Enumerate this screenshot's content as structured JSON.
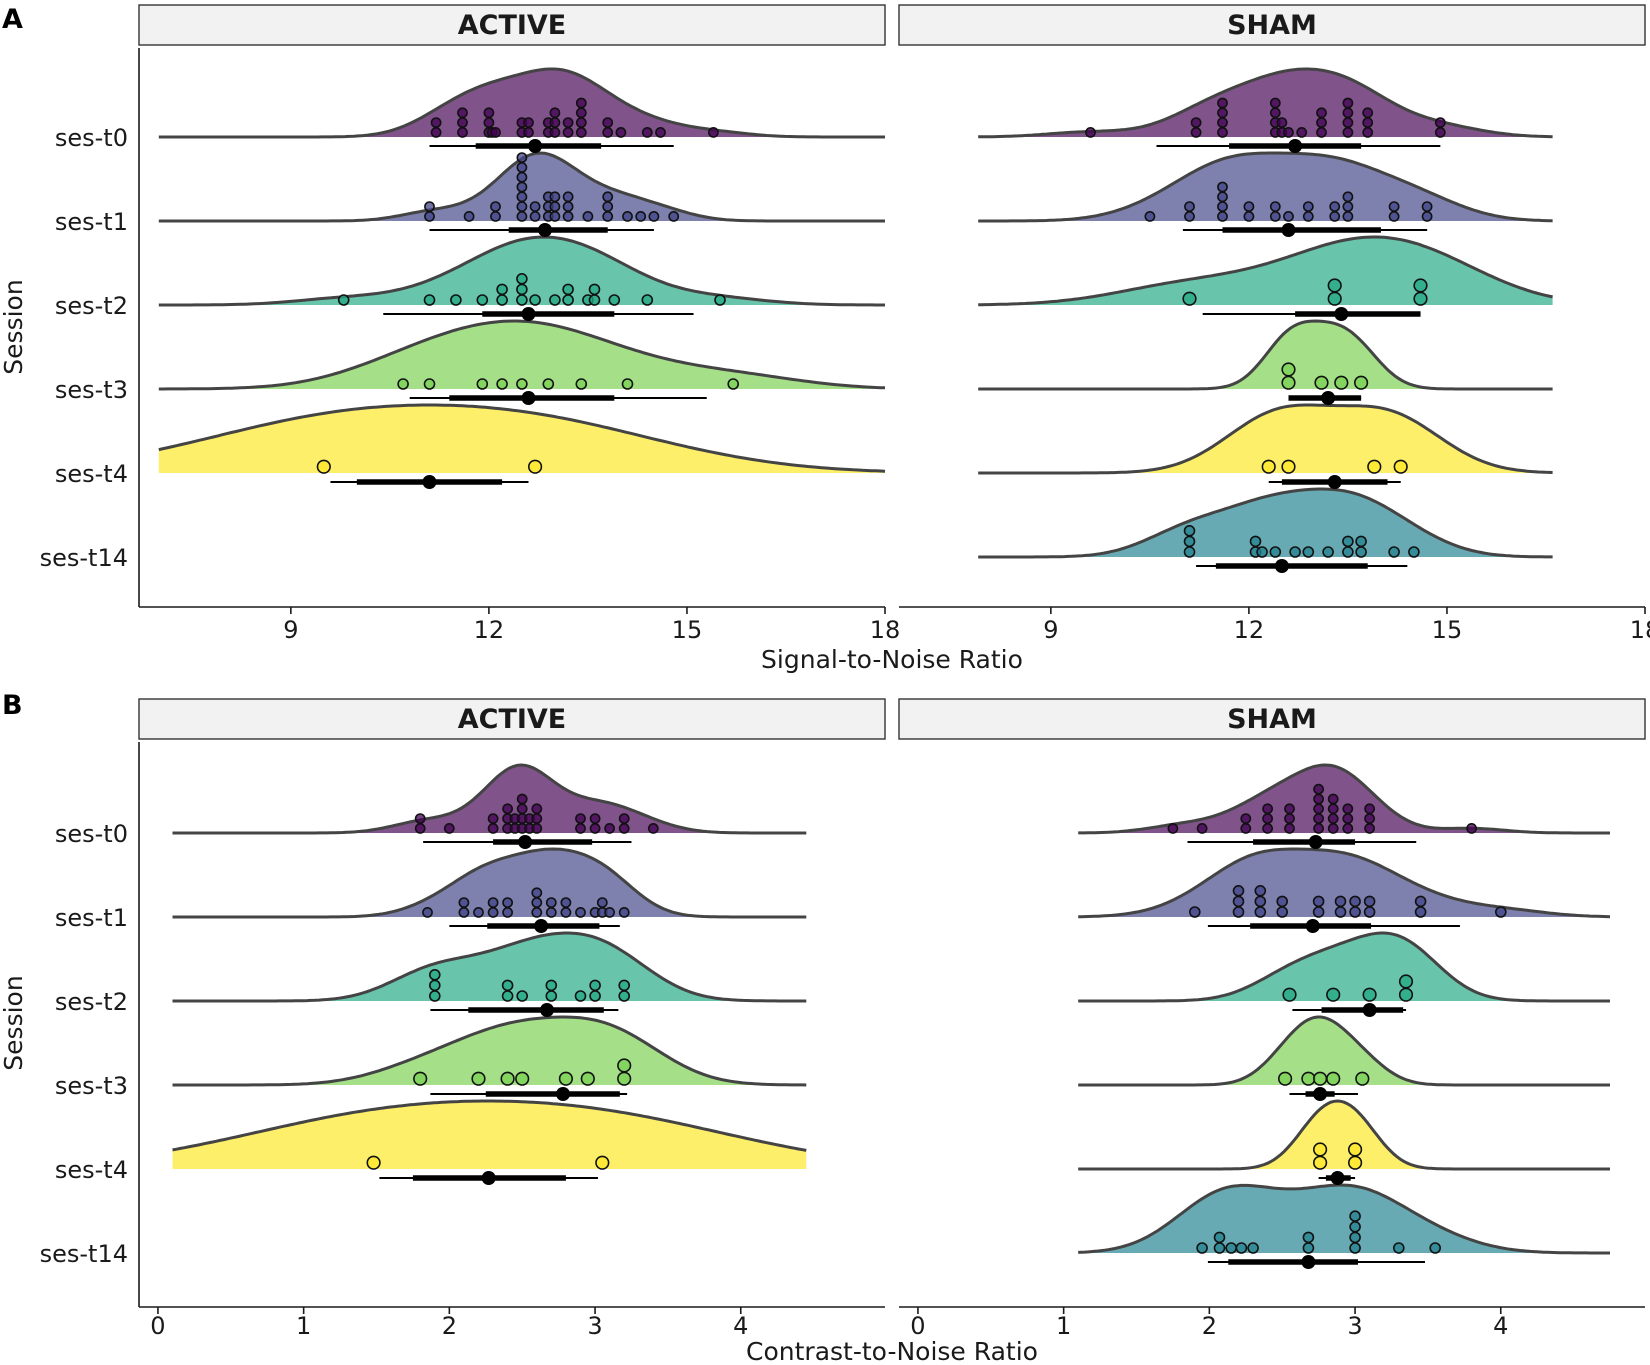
{
  "figure": {
    "panel_labels": [
      "A",
      "B"
    ],
    "sessions": [
      "ses-t0",
      "ses-t1",
      "ses-t2",
      "ses-t3",
      "ses-t4",
      "ses-t14"
    ],
    "colors": [
      "#440154",
      "#414487",
      "#22a884",
      "#7ad151",
      "#fde725",
      "#21818f"
    ]
  },
  "chart_data": [
    {
      "type": "raincloud",
      "panel": "A",
      "xlabel": "Signal-to-Noise Ratio",
      "ylabel": "Session",
      "xlim": [
        6.7,
        18.0
      ],
      "xticks": [
        9,
        12,
        15,
        18
      ],
      "xtick_labels": [
        "9",
        "12",
        "15",
        "18"
      ],
      "facets": [
        {
          "title": "ACTIVE",
          "groups": [
            {
              "session": "ses-t0",
              "range": [
                7.0,
                18.0
              ],
              "points": [
                11.2,
                11.2,
                11.6,
                11.6,
                11.6,
                12.0,
                12.0,
                12.0,
                12.05,
                12.1,
                12.5,
                12.5,
                12.6,
                12.6,
                12.9,
                12.9,
                13.0,
                13.0,
                13.0,
                13.2,
                13.2,
                13.4,
                13.4,
                13.4,
                13.4,
                13.8,
                13.8,
                14.0,
                14.4,
                14.6,
                15.4
              ],
              "summary": {
                "median": 12.7,
                "q_inner": [
                  11.8,
                  13.7
                ],
                "q_outer": [
                  11.1,
                  14.8
                ]
              }
            },
            {
              "session": "ses-t1",
              "range": [
                7.0,
                18.0
              ],
              "points": [
                11.1,
                11.1,
                11.7,
                12.1,
                12.1,
                12.5,
                12.5,
                12.5,
                12.5,
                12.5,
                12.5,
                12.5,
                12.7,
                12.7,
                12.9,
                12.9,
                12.9,
                13.0,
                13.0,
                13.0,
                13.2,
                13.2,
                13.2,
                13.5,
                13.8,
                13.8,
                13.8,
                14.1,
                14.3,
                14.5,
                14.8
              ],
              "summary": {
                "median": 12.85,
                "q_inner": [
                  12.3,
                  13.8
                ],
                "q_outer": [
                  11.1,
                  14.5
                ]
              }
            },
            {
              "session": "ses-t2",
              "range": [
                7.0,
                18.0
              ],
              "points": [
                9.8,
                11.1,
                11.5,
                11.9,
                12.2,
                12.2,
                12.5,
                12.5,
                12.5,
                12.7,
                13.0,
                13.2,
                13.2,
                13.5,
                13.6,
                13.6,
                13.9,
                14.4,
                15.5
              ],
              "summary": {
                "median": 12.6,
                "q_inner": [
                  11.9,
                  13.9
                ],
                "q_outer": [
                  10.4,
                  15.1
                ]
              }
            },
            {
              "session": "ses-t3",
              "range": [
                7.0,
                18.0
              ],
              "points": [
                10.7,
                11.1,
                11.9,
                12.2,
                12.5,
                12.9,
                13.4,
                14.1,
                15.7
              ],
              "summary": {
                "median": 12.6,
                "q_inner": [
                  11.4,
                  13.9
                ],
                "q_outer": [
                  10.8,
                  15.3
                ]
              }
            },
            {
              "session": "ses-t4",
              "range": [
                7.0,
                18.0
              ],
              "points": [
                9.5,
                12.7
              ],
              "summary": {
                "median": 11.1,
                "q_inner": [
                  10.0,
                  12.2
                ],
                "q_outer": [
                  9.6,
                  12.6
                ]
              }
            }
          ]
        },
        {
          "title": "SHAM",
          "groups": [
            {
              "session": "ses-t0",
              "range": [
                7.9,
                16.6
              ],
              "points": [
                9.6,
                11.2,
                11.2,
                11.6,
                11.6,
                11.6,
                11.6,
                12.4,
                12.4,
                12.4,
                12.4,
                12.5,
                12.5,
                12.6,
                12.8,
                13.1,
                13.1,
                13.1,
                13.5,
                13.5,
                13.5,
                13.5,
                13.8,
                13.8,
                13.8,
                14.9,
                14.9
              ],
              "summary": {
                "median": 12.7,
                "q_inner": [
                  11.7,
                  13.7
                ],
                "q_outer": [
                  10.6,
                  14.9
                ]
              }
            },
            {
              "session": "ses-t1",
              "range": [
                7.9,
                16.6
              ],
              "points": [
                10.5,
                11.1,
                11.1,
                11.6,
                11.6,
                11.6,
                11.6,
                12.0,
                12.0,
                12.4,
                12.4,
                12.6,
                12.9,
                12.9,
                13.3,
                13.3,
                13.5,
                13.5,
                13.5,
                14.2,
                14.2,
                14.7,
                14.7
              ],
              "summary": {
                "median": 12.6,
                "q_inner": [
                  11.6,
                  14.0
                ],
                "q_outer": [
                  11.0,
                  14.7
                ]
              }
            },
            {
              "session": "ses-t2",
              "range": [
                7.9,
                16.6
              ],
              "points": [
                11.1,
                13.3,
                13.3,
                14.6,
                14.6
              ],
              "summary": {
                "median": 13.4,
                "q_inner": [
                  12.7,
                  14.6
                ],
                "q_outer": [
                  11.3,
                  14.6
                ]
              }
            },
            {
              "session": "ses-t3",
              "range": [
                7.9,
                16.6
              ],
              "points": [
                12.6,
                12.6,
                13.1,
                13.4,
                13.7
              ],
              "summary": {
                "median": 13.2,
                "q_inner": [
                  12.6,
                  13.7
                ],
                "q_outer": [
                  12.6,
                  13.7
                ]
              }
            },
            {
              "session": "ses-t4",
              "range": [
                7.9,
                16.6
              ],
              "points": [
                12.3,
                12.6,
                13.9,
                14.3
              ],
              "summary": {
                "median": 13.3,
                "q_inner": [
                  12.5,
                  14.1
                ],
                "q_outer": [
                  12.3,
                  14.3
                ]
              }
            },
            {
              "session": "ses-t14",
              "range": [
                7.9,
                16.6
              ],
              "points": [
                11.1,
                11.1,
                11.1,
                12.1,
                12.1,
                12.2,
                12.4,
                12.7,
                12.9,
                13.2,
                13.5,
                13.5,
                13.7,
                13.7,
                14.2,
                14.5
              ],
              "summary": {
                "median": 12.5,
                "q_inner": [
                  11.5,
                  13.8
                ],
                "q_outer": [
                  11.2,
                  14.4
                ]
              }
            }
          ]
        }
      ]
    },
    {
      "type": "raincloud",
      "panel": "B",
      "xlabel": "Contrast-to-Noise Ratio",
      "ylabel": "Session",
      "xlim": [
        -0.13,
        4.99
      ],
      "xticks": [
        0,
        1,
        2,
        3,
        4
      ],
      "xtick_labels": [
        "0",
        "1",
        "2",
        "3",
        "4"
      ],
      "facets": [
        {
          "title": "ACTIVE",
          "groups": [
            {
              "session": "ses-t0",
              "range": [
                0.1,
                4.45
              ],
              "points": [
                1.8,
                1.8,
                2.0,
                2.3,
                2.3,
                2.4,
                2.4,
                2.4,
                2.45,
                2.45,
                2.5,
                2.5,
                2.5,
                2.5,
                2.55,
                2.55,
                2.6,
                2.6,
                2.6,
                2.9,
                2.9,
                3.0,
                3.0,
                3.1,
                3.2,
                3.2,
                3.4
              ],
              "summary": {
                "median": 2.52,
                "q_inner": [
                  2.3,
                  2.98
                ],
                "q_outer": [
                  1.82,
                  3.25
                ]
              }
            },
            {
              "session": "ses-t1",
              "range": [
                0.1,
                4.45
              ],
              "points": [
                1.85,
                2.1,
                2.1,
                2.2,
                2.3,
                2.3,
                2.4,
                2.4,
                2.6,
                2.6,
                2.6,
                2.7,
                2.7,
                2.8,
                2.8,
                2.9,
                3.0,
                3.05,
                3.05,
                3.1,
                3.2
              ],
              "summary": {
                "median": 2.63,
                "q_inner": [
                  2.26,
                  3.03
                ],
                "q_outer": [
                  2.0,
                  3.17
                ]
              }
            },
            {
              "session": "ses-t2",
              "range": [
                0.1,
                4.45
              ],
              "points": [
                1.9,
                1.9,
                1.9,
                2.4,
                2.4,
                2.5,
                2.7,
                2.7,
                2.9,
                3.0,
                3.0,
                3.2,
                3.2
              ],
              "summary": {
                "median": 2.67,
                "q_inner": [
                  2.13,
                  3.06
                ],
                "q_outer": [
                  1.87,
                  3.16
                ]
              }
            },
            {
              "session": "ses-t3",
              "range": [
                0.1,
                4.45
              ],
              "points": [
                1.8,
                2.2,
                2.4,
                2.5,
                2.8,
                2.95,
                3.2,
                3.2
              ],
              "summary": {
                "median": 2.78,
                "q_inner": [
                  2.25,
                  3.17
                ],
                "q_outer": [
                  1.87,
                  3.22
                ]
              }
            },
            {
              "session": "ses-t4",
              "range": [
                0.1,
                4.45
              ],
              "points": [
                1.48,
                3.05
              ],
              "summary": {
                "median": 2.27,
                "q_inner": [
                  1.75,
                  2.8
                ],
                "q_outer": [
                  1.52,
                  3.02
                ]
              }
            }
          ]
        },
        {
          "title": "SHAM",
          "groups": [
            {
              "session": "ses-t0",
              "range": [
                1.1,
                4.75
              ],
              "points": [
                1.75,
                1.95,
                2.25,
                2.25,
                2.4,
                2.4,
                2.4,
                2.55,
                2.55,
                2.55,
                2.75,
                2.75,
                2.75,
                2.75,
                2.75,
                2.85,
                2.85,
                2.85,
                2.85,
                2.95,
                2.95,
                2.95,
                3.1,
                3.1,
                3.1,
                3.8
              ],
              "summary": {
                "median": 2.73,
                "q_inner": [
                  2.3,
                  3.0
                ],
                "q_outer": [
                  1.85,
                  3.42
                ]
              }
            },
            {
              "session": "ses-t1",
              "range": [
                1.1,
                4.75
              ],
              "points": [
                1.9,
                2.2,
                2.2,
                2.2,
                2.35,
                2.35,
                2.35,
                2.5,
                2.5,
                2.75,
                2.75,
                2.9,
                2.9,
                3.0,
                3.0,
                3.1,
                3.1,
                3.45,
                3.45,
                4.0
              ],
              "summary": {
                "median": 2.71,
                "q_inner": [
                  2.28,
                  3.11
                ],
                "q_outer": [
                  1.99,
                  3.72
                ]
              }
            },
            {
              "session": "ses-t2",
              "range": [
                1.1,
                4.75
              ],
              "points": [
                2.55,
                2.85,
                3.1,
                3.35,
                3.35
              ],
              "summary": {
                "median": 3.1,
                "q_inner": [
                  2.77,
                  3.33
                ],
                "q_outer": [
                  2.57,
                  3.35
                ]
              }
            },
            {
              "session": "ses-t3",
              "range": [
                1.1,
                4.75
              ],
              "points": [
                2.52,
                2.68,
                2.76,
                2.85,
                3.05
              ],
              "summary": {
                "median": 2.76,
                "q_inner": [
                  2.66,
                  2.86
                ],
                "q_outer": [
                  2.55,
                  3.02
                ]
              }
            },
            {
              "session": "ses-t4",
              "range": [
                1.1,
                4.75
              ],
              "points": [
                2.76,
                2.76,
                3.0,
                3.0
              ],
              "summary": {
                "median": 2.88,
                "q_inner": [
                  2.8,
                  2.97
                ],
                "q_outer": [
                  2.75,
                  3.0
                ]
              }
            },
            {
              "session": "ses-t14",
              "range": [
                1.1,
                4.75
              ],
              "points": [
                1.95,
                2.07,
                2.07,
                2.15,
                2.22,
                2.3,
                2.68,
                2.68,
                3.0,
                3.0,
                3.0,
                3.0,
                3.3,
                3.55
              ],
              "summary": {
                "median": 2.68,
                "q_inner": [
                  2.13,
                  3.02
                ],
                "q_outer": [
                  1.99,
                  3.48
                ]
              }
            }
          ]
        }
      ]
    }
  ]
}
